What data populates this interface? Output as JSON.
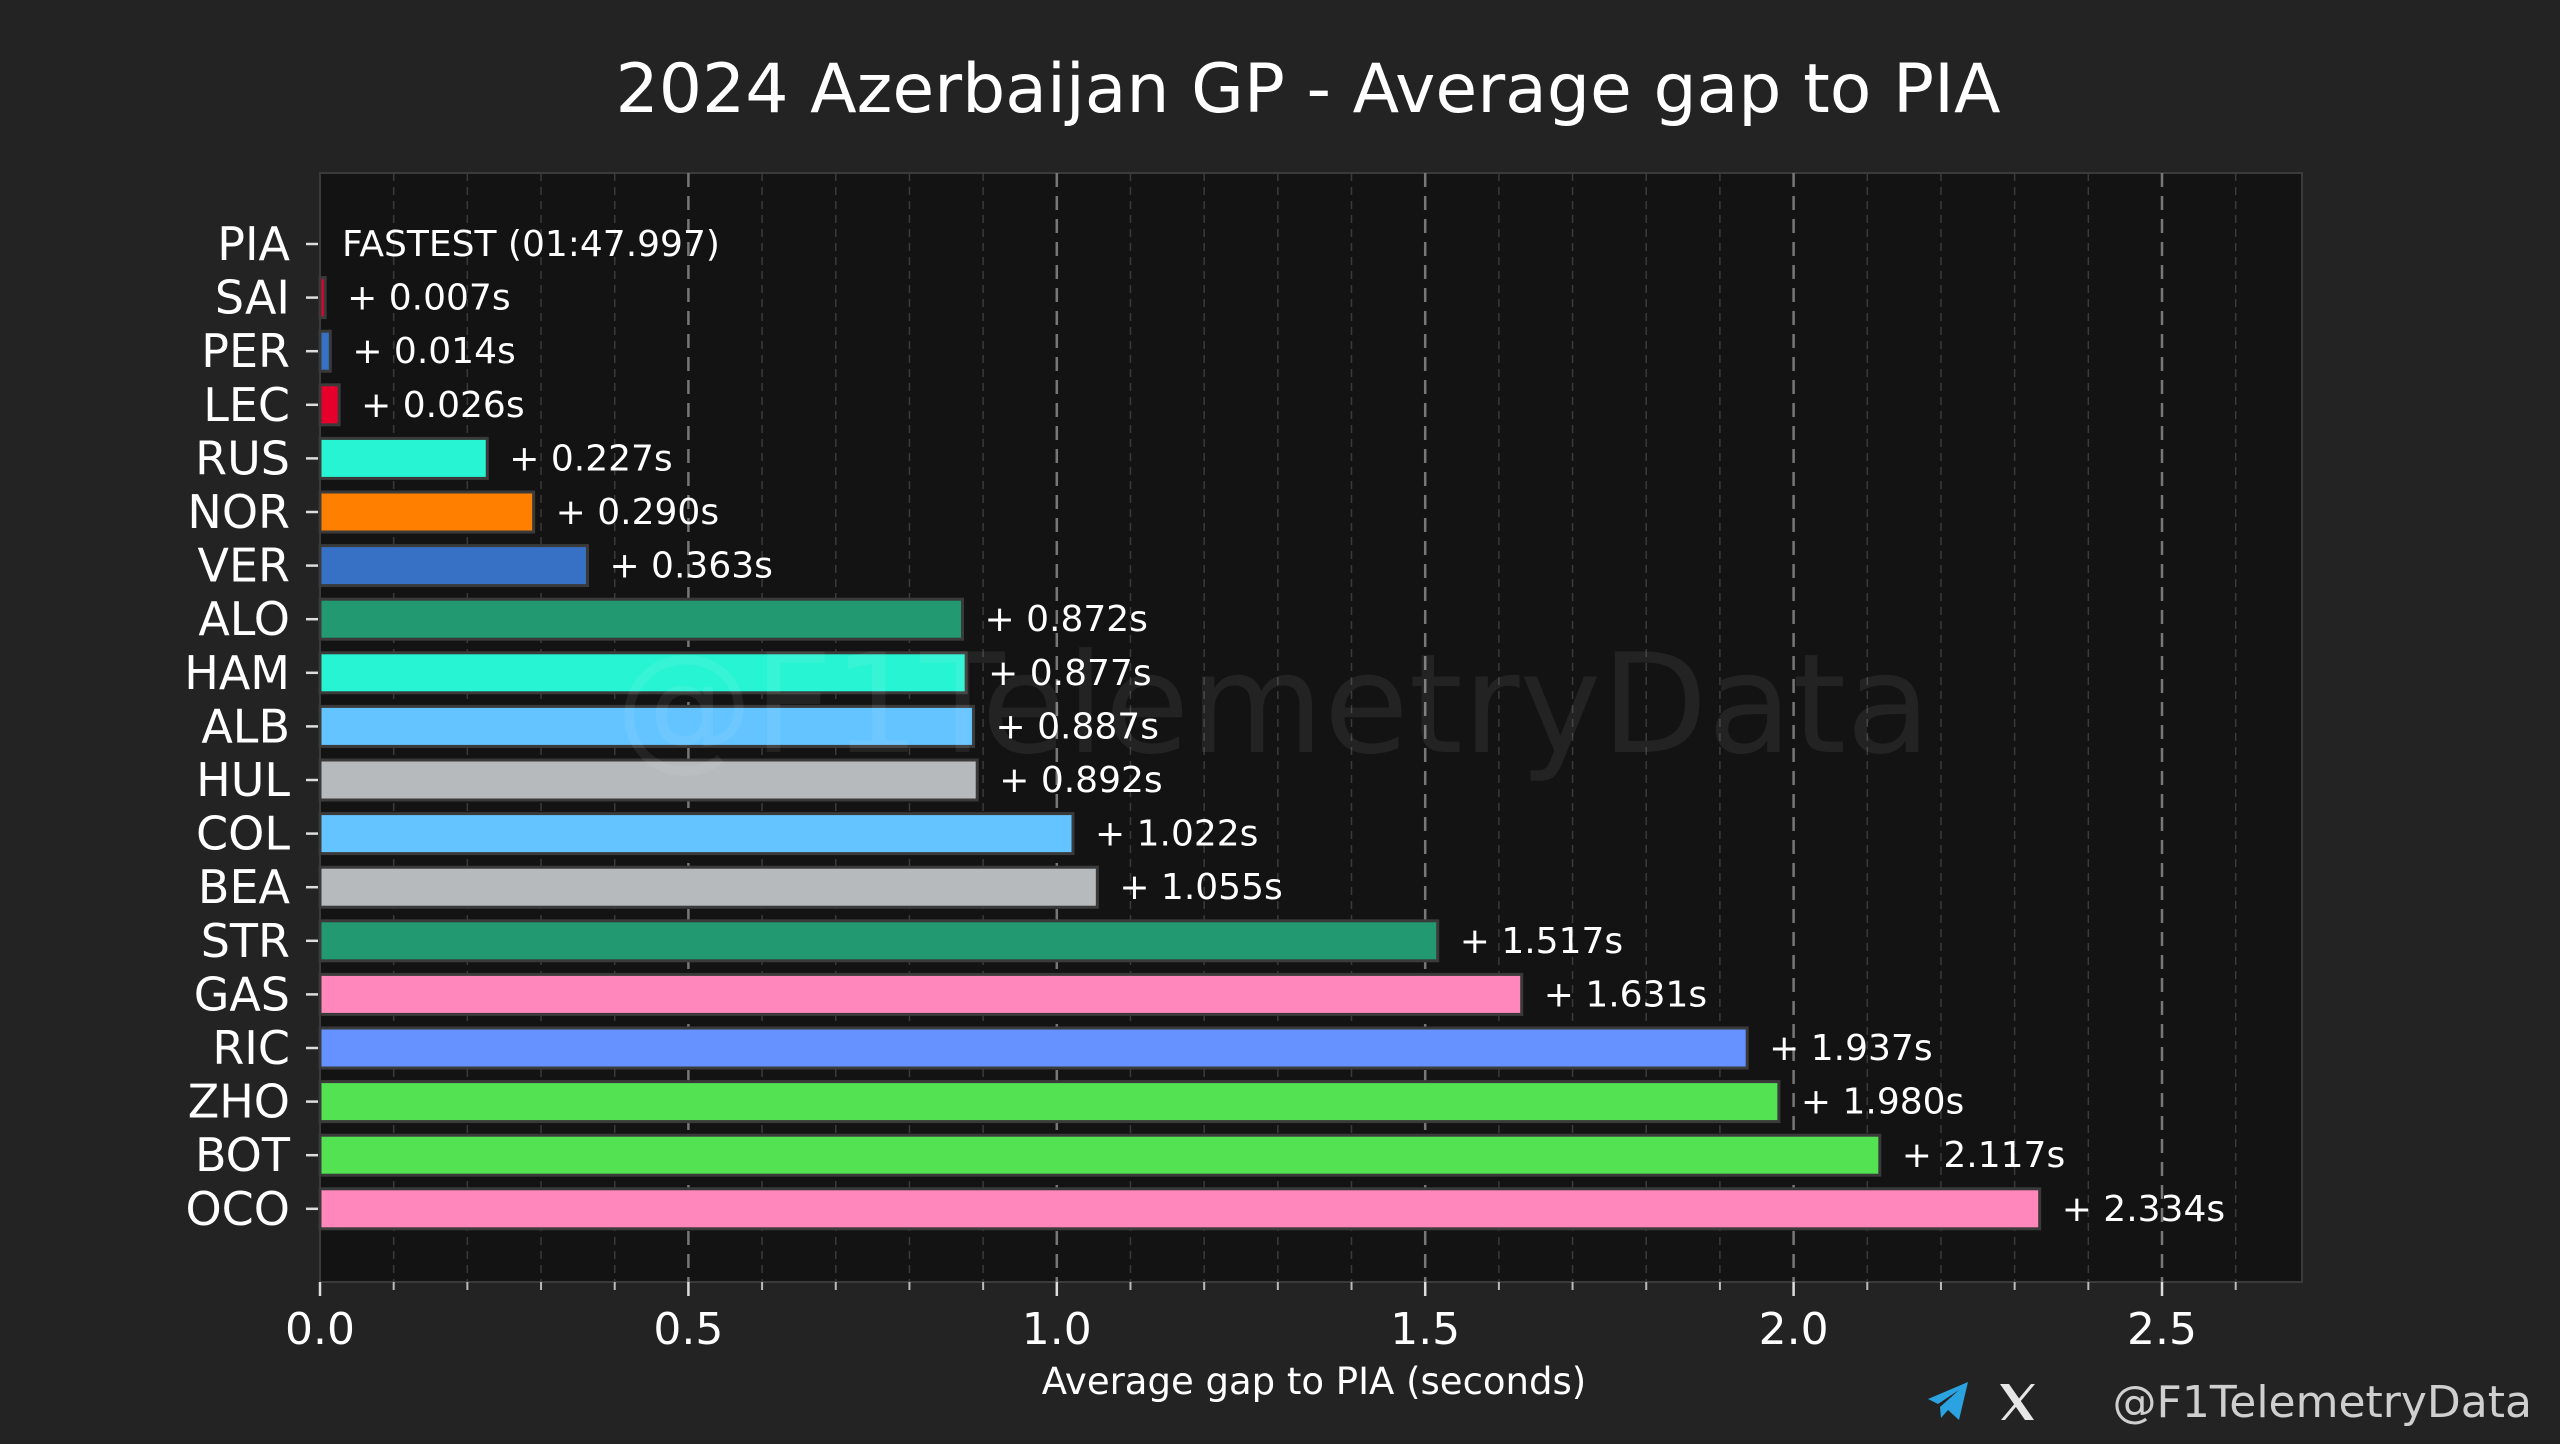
{
  "chart_data": {
    "type": "bar",
    "orientation": "horizontal",
    "title": "2024 Azerbaijan GP - Average gap to PIA",
    "xlabel": "Average gap to PIA (seconds)",
    "ylabel": "",
    "xlim": [
      0,
      2.69
    ],
    "xticks": [
      "0.0",
      "0.5",
      "1.0",
      "1.5",
      "2.0",
      "2.5"
    ],
    "xtick_values": [
      0,
      0.5,
      1.0,
      1.5,
      2.0,
      2.5
    ],
    "grid": "vertical dashed",
    "categories": [
      "PIA",
      "SAI",
      "PER",
      "LEC",
      "RUS",
      "NOR",
      "VER",
      "ALO",
      "HAM",
      "ALB",
      "HUL",
      "COL",
      "BEA",
      "STR",
      "GAS",
      "RIC",
      "ZHO",
      "BOT",
      "OCO"
    ],
    "values": [
      0,
      0.007,
      0.014,
      0.026,
      0.227,
      0.29,
      0.363,
      0.872,
      0.877,
      0.887,
      0.892,
      1.022,
      1.055,
      1.517,
      1.631,
      1.937,
      1.98,
      2.117,
      2.334
    ],
    "labels": [
      "FASTEST (01:47.997)",
      "+ 0.007s",
      "+ 0.014s",
      "+ 0.026s",
      "+ 0.227s",
      "+ 0.290s",
      "+ 0.363s",
      "+ 0.872s",
      "+ 0.877s",
      "+ 0.887s",
      "+ 0.892s",
      "+ 1.022s",
      "+ 1.055s",
      "+ 1.517s",
      "+ 1.631s",
      "+ 1.937s",
      "+ 1.980s",
      "+ 2.117s",
      "+ 2.334s"
    ],
    "colors": [
      "#FF8000",
      "#E8002D",
      "#3671C6",
      "#E8002D",
      "#27F4D2",
      "#FF8000",
      "#3671C6",
      "#229971",
      "#27F4D2",
      "#64C4FF",
      "#B6BABD",
      "#64C4FF",
      "#B6BABD",
      "#229971",
      "#FF87BC",
      "#6692FF",
      "#52E252",
      "#52E252",
      "#FF87BC"
    ]
  },
  "watermark": "@F1TelemetryData",
  "credit": {
    "handle": "@F1TelemetryData",
    "icons": [
      "telegram-icon",
      "x-icon"
    ]
  },
  "theme": {
    "background": "#232323",
    "plot_background": "#131313",
    "text": "#ffffff"
  }
}
